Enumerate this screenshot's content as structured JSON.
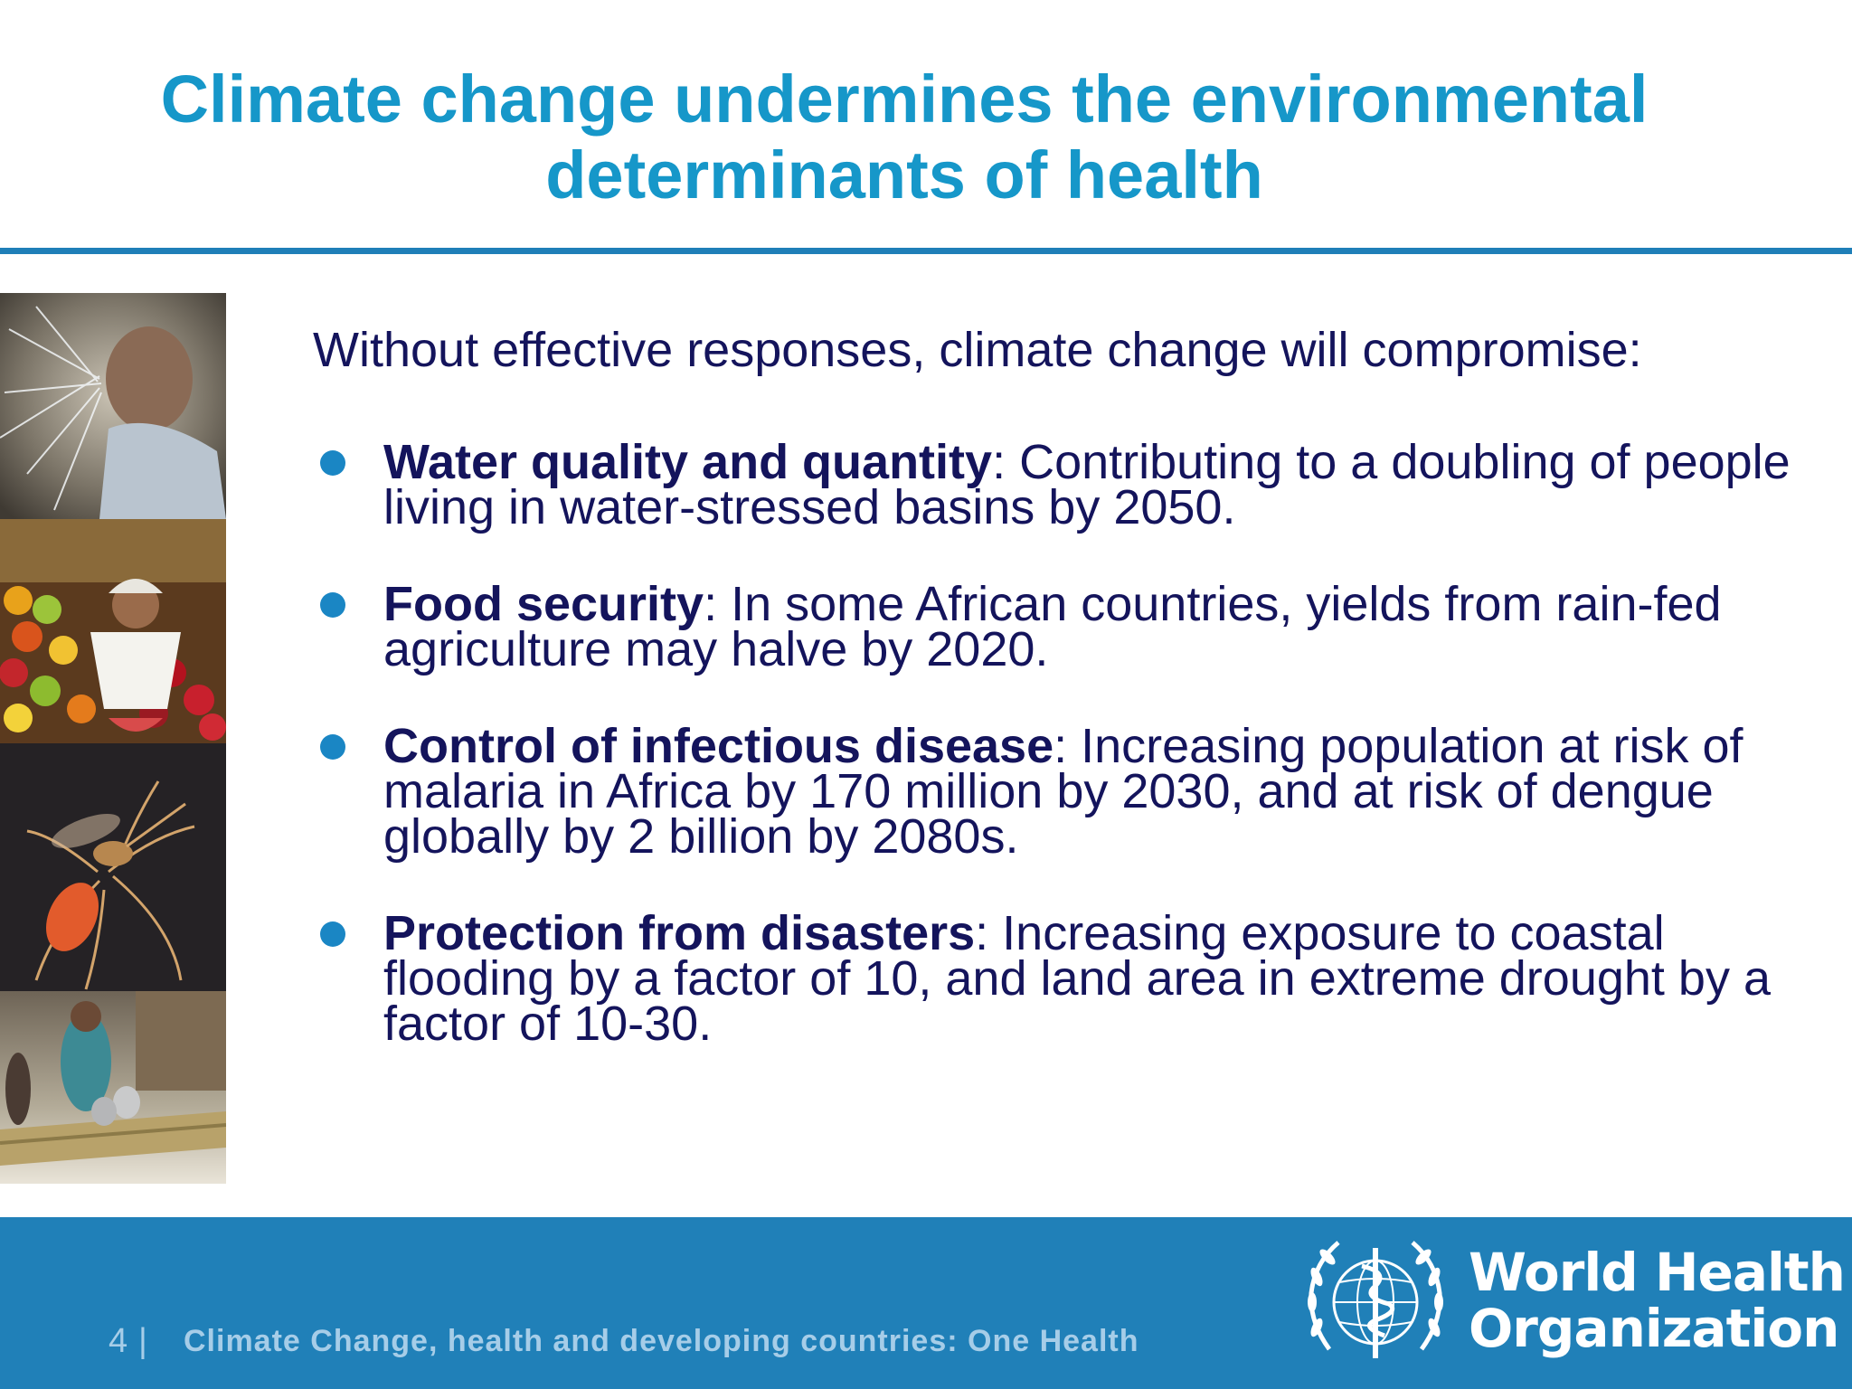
{
  "slide": {
    "title": "Climate change undermines the environmental determinants of health"
  },
  "content": {
    "intro": "Without effective responses, climate change will compromise:",
    "bullets": [
      {
        "heading": "Water quality and quantity",
        "text": ":  Contributing to a doubling of people living in water-stressed basins by 2050."
      },
      {
        "heading": "Food security",
        "text": ": In some African countries, yields from rain-fed agriculture may halve by 2020."
      },
      {
        "heading": "Control of infectious disease",
        "text": ": Increasing population at risk of malaria in Africa by 170 million by 2030, and at risk of dengue globally by 2 billion by 2080s."
      },
      {
        "heading": "Protection from disasters",
        "text": ": Increasing exposure to coastal flooding by a factor of 10, and land area in extreme drought by a factor of 10-30."
      }
    ]
  },
  "footer": {
    "page_number": "4",
    "separator": "|",
    "text": "Climate Change, health and developing countries: One Health"
  },
  "logo": {
    "name_line1": "World Health",
    "name_line2": "Organization",
    "icon": "who-emblem-icon"
  },
  "photos": [
    "child-drinking-water-photo",
    "fruit-market-photo",
    "mosquito-photo",
    "flood-raft-photo"
  ],
  "colors": {
    "title": "#1697c9",
    "body_text": "#14145c",
    "bullet": "#1a86c4",
    "rule": "#1f7fb8",
    "footer_bg": "#2080b8",
    "footer_text": "#a6cde8"
  }
}
